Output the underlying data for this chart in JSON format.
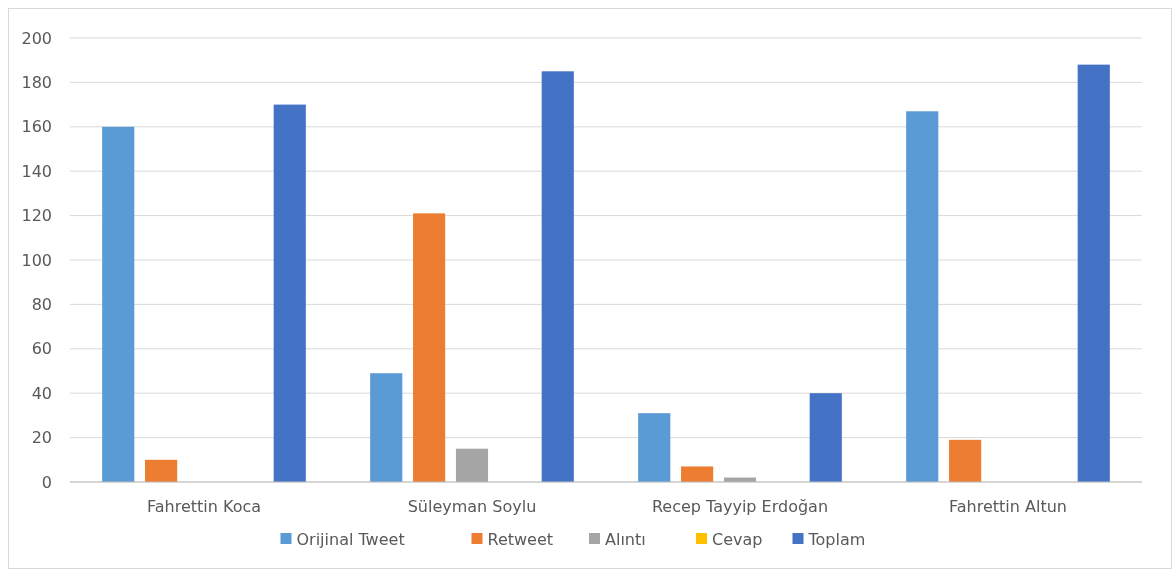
{
  "chart_data": {
    "type": "bar",
    "categories": [
      "Fahrettin Koca",
      "Süleyman Soylu",
      "Recep Tayyip Erdoğan",
      "Fahrettin Altun"
    ],
    "series": [
      {
        "name": "Orijinal Tweet",
        "color": "#5b9bd5",
        "values": [
          160,
          49,
          31,
          167
        ]
      },
      {
        "name": "Retweet",
        "color": "#ed7d31",
        "values": [
          10,
          121,
          7,
          19
        ]
      },
      {
        "name": "Alıntı",
        "color": "#a5a5a5",
        "values": [
          0,
          15,
          2,
          0
        ]
      },
      {
        "name": "Cevap",
        "color": "#ffc000",
        "values": [
          0,
          0,
          0,
          0
        ]
      },
      {
        "name": "Toplam",
        "color": "#4472c4",
        "values": [
          170,
          185,
          40,
          188
        ]
      }
    ],
    "ylim": [
      0,
      200
    ],
    "yticks": [
      0,
      20,
      40,
      60,
      80,
      100,
      120,
      140,
      160,
      180,
      200
    ],
    "grid": "y",
    "legend": "bottom"
  }
}
